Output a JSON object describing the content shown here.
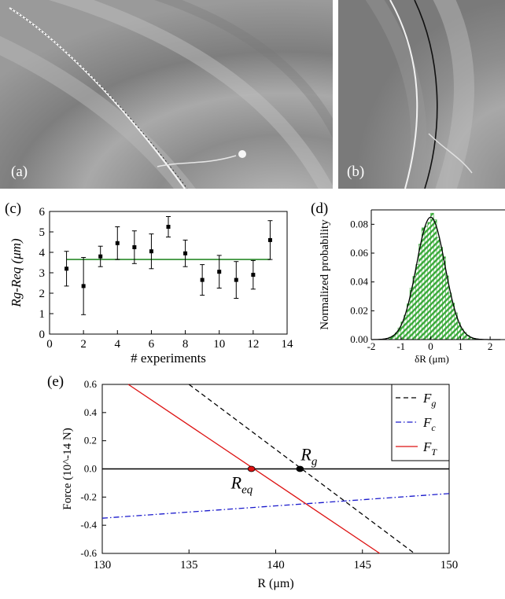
{
  "panel_labels": {
    "a": "(a)",
    "b": "(b)",
    "c": "(c)",
    "d": "(d)",
    "e": "(e)"
  },
  "chart_data": [
    {
      "id": "c",
      "type": "scatter",
      "xlabel": "# experiments",
      "ylabel": "Rg-Req (μm)",
      "xlim": [
        0,
        14
      ],
      "ylim": [
        0,
        6
      ],
      "xticks": [
        0,
        2,
        4,
        6,
        8,
        10,
        12,
        14
      ],
      "yticks": [
        0,
        1,
        2,
        3,
        4,
        5,
        6
      ],
      "x": [
        1,
        2,
        3,
        4,
        5,
        6,
        7,
        8,
        9,
        10,
        11,
        12,
        13
      ],
      "y": [
        3.2,
        2.35,
        3.8,
        4.45,
        4.25,
        4.05,
        5.25,
        3.95,
        2.65,
        3.05,
        2.65,
        2.9,
        4.6
      ],
      "yerr": [
        0.85,
        1.4,
        0.5,
        0.8,
        0.8,
        0.85,
        0.5,
        0.65,
        0.75,
        0.8,
        0.9,
        0.7,
        0.95
      ],
      "mean_line": 3.65,
      "colors": {
        "points": "#000000",
        "mean_line": "#2a8a2a"
      }
    },
    {
      "id": "d",
      "type": "bar",
      "xlabel": "δR (μm)",
      "ylabel": "Normalized probability",
      "xlim": [
        -2,
        2.5
      ],
      "ylim": [
        0,
        0.09
      ],
      "xticks": [
        -2,
        -1,
        0,
        1,
        2
      ],
      "yticks": [
        "0.00",
        "0.02",
        "0.04",
        "0.06",
        "0.08"
      ],
      "bin_width": 0.1,
      "gaussian": {
        "mean": 0,
        "sigma": 0.48,
        "peak": 0.085
      },
      "colors": {
        "bars": "#3aaa3a",
        "curve": "#000000"
      }
    },
    {
      "id": "e",
      "type": "line",
      "xlabel": "R (μm)",
      "ylabel": "Force (10^-14 N)",
      "xlim": [
        130,
        150
      ],
      "ylim": [
        -0.6,
        0.6
      ],
      "xticks": [
        130,
        135,
        140,
        145,
        150
      ],
      "yticks": [
        "-0.6",
        "-0.4",
        "-0.2",
        "0.0",
        "0.2",
        "0.4",
        "0.6"
      ],
      "series": [
        {
          "name": "Fg",
          "style": "dashed",
          "color": "#000000",
          "x": [
            135,
            148
          ],
          "y": [
            0.6,
            -0.6
          ]
        },
        {
          "name": "Fc",
          "style": "dashdot",
          "color": "#1a1acc",
          "x": [
            130,
            150
          ],
          "y": [
            -0.35,
            -0.175
          ]
        },
        {
          "name": "FT",
          "style": "solid",
          "color": "#dd1111",
          "x": [
            131.5,
            146
          ],
          "y": [
            0.6,
            -0.6
          ]
        }
      ],
      "zero_line": 0,
      "markers": [
        {
          "label": "Rg",
          "x": 141.4,
          "y": 0,
          "color": "#000000"
        },
        {
          "label": "Req",
          "x": 138.6,
          "y": 0,
          "color": "#dd1111"
        }
      ],
      "legend_position": "top-right"
    }
  ]
}
